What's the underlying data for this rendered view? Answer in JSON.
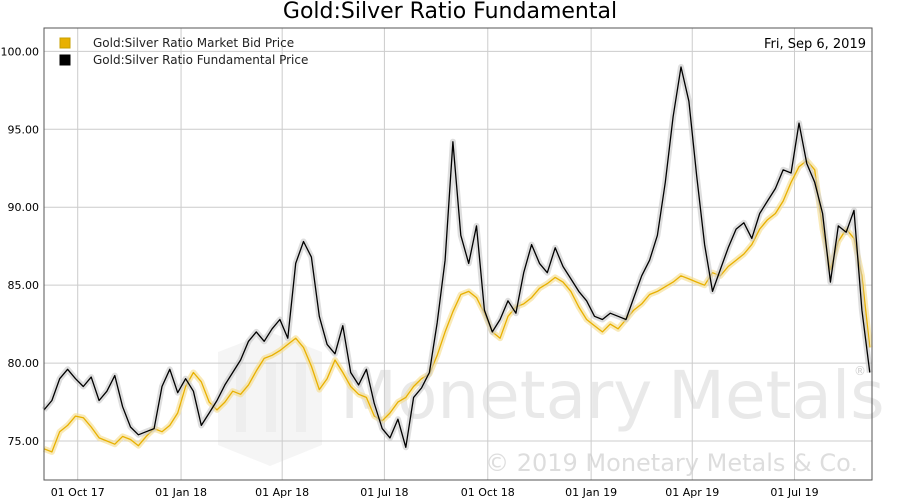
{
  "chart_data": {
    "type": "line",
    "title": "Gold:Silver Ratio Fundamental",
    "date_label": "Fri, Sep 6, 2019",
    "xlabel": "",
    "ylabel": "",
    "ylim": [
      72.5,
      101.5
    ],
    "xlim": [
      "2017-09-01",
      "2019-09-08"
    ],
    "y_ticks": [
      "75.00",
      "80.00",
      "85.00",
      "90.00",
      "95.00",
      "100.00"
    ],
    "x_ticks": [
      {
        "label": "01 Oct 17",
        "date": "2017-10-01"
      },
      {
        "label": "01 Jan 18",
        "date": "2018-01-01"
      },
      {
        "label": "01 Apr 18",
        "date": "2018-04-01"
      },
      {
        "label": "01 Jul 18",
        "date": "2018-07-01"
      },
      {
        "label": "01 Oct 18",
        "date": "2018-10-01"
      },
      {
        "label": "01 Jan 19",
        "date": "2019-01-01"
      },
      {
        "label": "01 Apr 19",
        "date": "2019-04-01"
      },
      {
        "label": "01 Jul 19",
        "date": "2019-07-01"
      }
    ],
    "grid": true,
    "legend_position": "top-left",
    "series": [
      {
        "name": "Gold:Silver Ratio Market Bid Price",
        "color": "#e8b000",
        "points": [
          [
            "2017-09-01",
            74.5
          ],
          [
            "2017-09-08",
            74.3
          ],
          [
            "2017-09-15",
            75.6
          ],
          [
            "2017-09-22",
            76.0
          ],
          [
            "2017-09-29",
            76.6
          ],
          [
            "2017-10-06",
            76.5
          ],
          [
            "2017-10-13",
            75.9
          ],
          [
            "2017-10-20",
            75.2
          ],
          [
            "2017-10-27",
            75.0
          ],
          [
            "2017-11-03",
            74.8
          ],
          [
            "2017-11-10",
            75.3
          ],
          [
            "2017-11-17",
            75.1
          ],
          [
            "2017-11-24",
            74.7
          ],
          [
            "2017-12-01",
            75.3
          ],
          [
            "2017-12-08",
            75.8
          ],
          [
            "2017-12-15",
            75.6
          ],
          [
            "2017-12-22",
            76.0
          ],
          [
            "2017-12-29",
            76.8
          ],
          [
            "2018-01-05",
            78.5
          ],
          [
            "2018-01-12",
            79.4
          ],
          [
            "2018-01-19",
            78.8
          ],
          [
            "2018-01-26",
            77.5
          ],
          [
            "2018-02-02",
            77.0
          ],
          [
            "2018-02-09",
            77.5
          ],
          [
            "2018-02-16",
            78.2
          ],
          [
            "2018-02-23",
            78.0
          ],
          [
            "2018-03-02",
            78.6
          ],
          [
            "2018-03-09",
            79.5
          ],
          [
            "2018-03-16",
            80.3
          ],
          [
            "2018-03-23",
            80.5
          ],
          [
            "2018-03-30",
            80.8
          ],
          [
            "2018-04-06",
            81.2
          ],
          [
            "2018-04-13",
            81.6
          ],
          [
            "2018-04-20",
            81.0
          ],
          [
            "2018-04-27",
            79.8
          ],
          [
            "2018-05-04",
            78.3
          ],
          [
            "2018-05-11",
            79.0
          ],
          [
            "2018-05-18",
            80.2
          ],
          [
            "2018-05-25",
            79.4
          ],
          [
            "2018-06-01",
            78.5
          ],
          [
            "2018-06-08",
            78.0
          ],
          [
            "2018-06-15",
            77.8
          ],
          [
            "2018-06-22",
            76.6
          ],
          [
            "2018-06-29",
            76.3
          ],
          [
            "2018-07-06",
            76.8
          ],
          [
            "2018-07-13",
            77.5
          ],
          [
            "2018-07-20",
            77.8
          ],
          [
            "2018-07-27",
            78.5
          ],
          [
            "2018-08-03",
            79.0
          ],
          [
            "2018-08-10",
            79.3
          ],
          [
            "2018-08-17",
            80.5
          ],
          [
            "2018-08-24",
            82.0
          ],
          [
            "2018-08-31",
            83.3
          ],
          [
            "2018-09-07",
            84.4
          ],
          [
            "2018-09-14",
            84.6
          ],
          [
            "2018-09-21",
            84.2
          ],
          [
            "2018-09-28",
            83.2
          ],
          [
            "2018-10-05",
            82.0
          ],
          [
            "2018-10-12",
            81.6
          ],
          [
            "2018-10-19",
            83.0
          ],
          [
            "2018-10-26",
            83.6
          ],
          [
            "2018-11-02",
            83.8
          ],
          [
            "2018-11-09",
            84.2
          ],
          [
            "2018-11-16",
            84.8
          ],
          [
            "2018-11-23",
            85.1
          ],
          [
            "2018-11-30",
            85.5
          ],
          [
            "2018-12-07",
            85.2
          ],
          [
            "2018-12-14",
            84.6
          ],
          [
            "2018-12-21",
            83.6
          ],
          [
            "2018-12-28",
            82.8
          ],
          [
            "2019-01-04",
            82.4
          ],
          [
            "2019-01-11",
            82.0
          ],
          [
            "2019-01-18",
            82.5
          ],
          [
            "2019-01-25",
            82.2
          ],
          [
            "2019-02-01",
            82.8
          ],
          [
            "2019-02-08",
            83.4
          ],
          [
            "2019-02-15",
            83.8
          ],
          [
            "2019-02-22",
            84.4
          ],
          [
            "2019-03-01",
            84.6
          ],
          [
            "2019-03-08",
            84.9
          ],
          [
            "2019-03-15",
            85.2
          ],
          [
            "2019-03-22",
            85.6
          ],
          [
            "2019-03-29",
            85.4
          ],
          [
            "2019-04-05",
            85.2
          ],
          [
            "2019-04-12",
            85.0
          ],
          [
            "2019-04-19",
            85.8
          ],
          [
            "2019-04-26",
            85.6
          ],
          [
            "2019-05-03",
            86.2
          ],
          [
            "2019-05-10",
            86.6
          ],
          [
            "2019-05-17",
            87.0
          ],
          [
            "2019-05-24",
            87.6
          ],
          [
            "2019-05-31",
            88.6
          ],
          [
            "2019-06-07",
            89.2
          ],
          [
            "2019-06-14",
            89.6
          ],
          [
            "2019-06-21",
            90.4
          ],
          [
            "2019-06-28",
            91.6
          ],
          [
            "2019-07-05",
            92.6
          ],
          [
            "2019-07-12",
            93.0
          ],
          [
            "2019-07-19",
            92.4
          ],
          [
            "2019-07-26",
            88.6
          ],
          [
            "2019-08-02",
            86.0
          ],
          [
            "2019-08-09",
            87.8
          ],
          [
            "2019-08-16",
            88.6
          ],
          [
            "2019-08-23",
            88.0
          ],
          [
            "2019-08-30",
            85.6
          ],
          [
            "2019-09-06",
            81.0
          ]
        ]
      },
      {
        "name": "Gold:Silver Ratio Fundamental Price",
        "color": "#000000",
        "points": [
          [
            "2017-09-01",
            77.0
          ],
          [
            "2017-09-08",
            77.6
          ],
          [
            "2017-09-15",
            79.0
          ],
          [
            "2017-09-22",
            79.6
          ],
          [
            "2017-09-29",
            79.0
          ],
          [
            "2017-10-06",
            78.5
          ],
          [
            "2017-10-13",
            79.1
          ],
          [
            "2017-10-20",
            77.6
          ],
          [
            "2017-10-27",
            78.2
          ],
          [
            "2017-11-03",
            79.2
          ],
          [
            "2017-11-10",
            77.2
          ],
          [
            "2017-11-17",
            75.9
          ],
          [
            "2017-11-24",
            75.4
          ],
          [
            "2017-12-01",
            75.6
          ],
          [
            "2017-12-08",
            75.8
          ],
          [
            "2017-12-15",
            78.5
          ],
          [
            "2017-12-22",
            79.6
          ],
          [
            "2017-12-29",
            78.1
          ],
          [
            "2018-01-05",
            79.0
          ],
          [
            "2018-01-12",
            78.2
          ],
          [
            "2018-01-19",
            76.0
          ],
          [
            "2018-01-26",
            76.8
          ],
          [
            "2018-02-02",
            77.6
          ],
          [
            "2018-02-09",
            78.6
          ],
          [
            "2018-02-16",
            79.4
          ],
          [
            "2018-02-23",
            80.2
          ],
          [
            "2018-03-02",
            81.4
          ],
          [
            "2018-03-09",
            82.0
          ],
          [
            "2018-03-16",
            81.4
          ],
          [
            "2018-03-23",
            82.2
          ],
          [
            "2018-03-30",
            82.8
          ],
          [
            "2018-04-06",
            81.6
          ],
          [
            "2018-04-13",
            86.4
          ],
          [
            "2018-04-20",
            87.8
          ],
          [
            "2018-04-27",
            86.8
          ],
          [
            "2018-05-04",
            83.0
          ],
          [
            "2018-05-11",
            81.2
          ],
          [
            "2018-05-18",
            80.6
          ],
          [
            "2018-05-25",
            82.4
          ],
          [
            "2018-06-01",
            79.4
          ],
          [
            "2018-06-08",
            78.6
          ],
          [
            "2018-06-15",
            79.6
          ],
          [
            "2018-06-22",
            77.4
          ],
          [
            "2018-06-29",
            75.8
          ],
          [
            "2018-07-06",
            75.2
          ],
          [
            "2018-07-13",
            76.4
          ],
          [
            "2018-07-20",
            74.6
          ],
          [
            "2018-07-27",
            77.8
          ],
          [
            "2018-08-03",
            78.4
          ],
          [
            "2018-08-10",
            79.4
          ],
          [
            "2018-08-17",
            82.6
          ],
          [
            "2018-08-24",
            86.6
          ],
          [
            "2018-08-31",
            94.2
          ],
          [
            "2018-09-07",
            88.2
          ],
          [
            "2018-09-14",
            86.4
          ],
          [
            "2018-09-21",
            88.8
          ],
          [
            "2018-09-28",
            83.4
          ],
          [
            "2018-10-05",
            82.0
          ],
          [
            "2018-10-12",
            82.8
          ],
          [
            "2018-10-19",
            84.0
          ],
          [
            "2018-10-26",
            83.2
          ],
          [
            "2018-11-02",
            85.8
          ],
          [
            "2018-11-09",
            87.6
          ],
          [
            "2018-11-16",
            86.4
          ],
          [
            "2018-11-23",
            85.8
          ],
          [
            "2018-11-30",
            87.4
          ],
          [
            "2018-12-07",
            86.2
          ],
          [
            "2018-12-14",
            85.4
          ],
          [
            "2018-12-21",
            84.6
          ],
          [
            "2018-12-28",
            84.0
          ],
          [
            "2019-01-04",
            83.0
          ],
          [
            "2019-01-11",
            82.8
          ],
          [
            "2019-01-18",
            83.2
          ],
          [
            "2019-01-25",
            83.0
          ],
          [
            "2019-02-01",
            82.8
          ],
          [
            "2019-02-08",
            84.2
          ],
          [
            "2019-02-15",
            85.6
          ],
          [
            "2019-02-22",
            86.6
          ],
          [
            "2019-03-01",
            88.2
          ],
          [
            "2019-03-08",
            91.6
          ],
          [
            "2019-03-15",
            95.8
          ],
          [
            "2019-03-22",
            99.0
          ],
          [
            "2019-03-29",
            96.8
          ],
          [
            "2019-04-05",
            92.0
          ],
          [
            "2019-04-12",
            87.6
          ],
          [
            "2019-04-19",
            84.6
          ],
          [
            "2019-04-26",
            86.0
          ],
          [
            "2019-05-03",
            87.4
          ],
          [
            "2019-05-10",
            88.6
          ],
          [
            "2019-05-17",
            89.0
          ],
          [
            "2019-05-24",
            88.0
          ],
          [
            "2019-05-31",
            89.6
          ],
          [
            "2019-06-07",
            90.4
          ],
          [
            "2019-06-14",
            91.2
          ],
          [
            "2019-06-21",
            92.4
          ],
          [
            "2019-06-28",
            92.2
          ],
          [
            "2019-07-05",
            95.4
          ],
          [
            "2019-07-12",
            92.8
          ],
          [
            "2019-07-19",
            91.6
          ],
          [
            "2019-07-26",
            89.6
          ],
          [
            "2019-08-02",
            85.2
          ],
          [
            "2019-08-09",
            88.8
          ],
          [
            "2019-08-16",
            88.4
          ],
          [
            "2019-08-23",
            89.8
          ],
          [
            "2019-08-30",
            83.4
          ],
          [
            "2019-09-06",
            79.4
          ]
        ]
      }
    ]
  },
  "watermark": {
    "brand_part1": "Monetary",
    "brand_part2": "Metals",
    "registered": "®",
    "copyright": "© 2019 Monetary Metals & Co."
  },
  "colors": {
    "grid": "#cccccc",
    "frame": "#555555",
    "gold_glow": "#f5dc8a",
    "black_glow": "#c8c8c8"
  }
}
